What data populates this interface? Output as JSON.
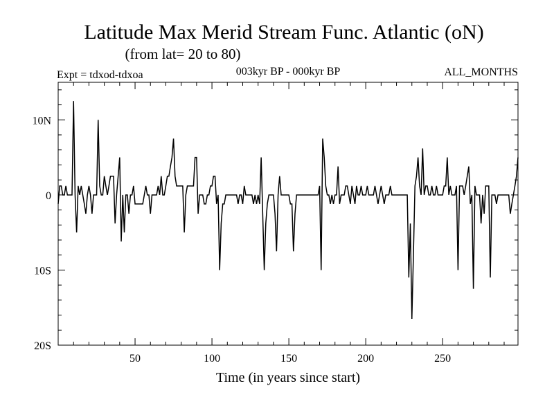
{
  "chart_data": {
    "type": "line",
    "title": "Latitude Max Merid Stream Func. Atlantic (oN)",
    "subtitle": "(from lat= 20 to 80)",
    "expt_label": "Expt = tdxod-tdxoa",
    "period_label": "003kyr BP - 000kyr BP",
    "months_label": "ALL_MONTHS",
    "xlabel": "Time (in years since start)",
    "ylabel": "",
    "xlim": [
      0,
      299
    ],
    "ylim": [
      -20,
      15
    ],
    "x_ticks": [
      {
        "value": 50,
        "label": "50"
      },
      {
        "value": 100,
        "label": "100"
      },
      {
        "value": 150,
        "label": "150"
      },
      {
        "value": 200,
        "label": "200"
      },
      {
        "value": 250,
        "label": "250"
      }
    ],
    "y_ticks": [
      {
        "value": 10,
        "label": "10N"
      },
      {
        "value": 0,
        "label": "0"
      },
      {
        "value": -10,
        "label": "10S"
      },
      {
        "value": -20,
        "label": "20S"
      }
    ],
    "grid": false,
    "series_color": "#000000",
    "series": [
      {
        "points": [
          [
            0,
            -1.2
          ],
          [
            1,
            1.2
          ],
          [
            2,
            1.2
          ],
          [
            3,
            0
          ],
          [
            4,
            0
          ],
          [
            5,
            1.2
          ],
          [
            6,
            0
          ],
          [
            7,
            0
          ],
          [
            8,
            0
          ],
          [
            9,
            0
          ],
          [
            10,
            12.5
          ],
          [
            11,
            0
          ],
          [
            12,
            -5
          ],
          [
            13,
            1.2
          ],
          [
            14,
            0
          ],
          [
            15,
            1.2
          ],
          [
            16,
            0
          ],
          [
            17,
            -1.2
          ],
          [
            18,
            -2.5
          ],
          [
            19,
            0
          ],
          [
            20,
            1.2
          ],
          [
            21,
            0
          ],
          [
            22,
            -2.5
          ],
          [
            23,
            0
          ],
          [
            24,
            0
          ],
          [
            25,
            0
          ],
          [
            26,
            10
          ],
          [
            27,
            1.2
          ],
          [
            28,
            0
          ],
          [
            29,
            0
          ],
          [
            30,
            2.5
          ],
          [
            31,
            1.2
          ],
          [
            32,
            0
          ],
          [
            33,
            1.2
          ],
          [
            34,
            2.5
          ],
          [
            35,
            2.5
          ],
          [
            36,
            2.5
          ],
          [
            37,
            -3.8
          ],
          [
            38,
            0
          ],
          [
            39,
            2.5
          ],
          [
            40,
            5
          ],
          [
            41,
            -6.2
          ],
          [
            42,
            0
          ],
          [
            43,
            -5
          ],
          [
            44,
            0
          ],
          [
            45,
            0
          ],
          [
            46,
            -2.5
          ],
          [
            47,
            0
          ],
          [
            48,
            0
          ],
          [
            49,
            1.2
          ],
          [
            50,
            -1.2
          ],
          [
            51,
            -1.2
          ],
          [
            52,
            -1.2
          ],
          [
            53,
            -1.2
          ],
          [
            54,
            -1.2
          ],
          [
            55,
            -1.2
          ],
          [
            56,
            0
          ],
          [
            57,
            1.2
          ],
          [
            58,
            0
          ],
          [
            59,
            0
          ],
          [
            60,
            -2.5
          ],
          [
            61,
            0
          ],
          [
            62,
            0
          ],
          [
            63,
            0
          ],
          [
            64,
            0
          ],
          [
            65,
            1.2
          ],
          [
            66,
            0
          ],
          [
            67,
            2.5
          ],
          [
            68,
            0
          ],
          [
            69,
            0
          ],
          [
            70,
            1.2
          ],
          [
            71,
            2.5
          ],
          [
            72,
            2.5
          ],
          [
            73,
            3.8
          ],
          [
            74,
            5
          ],
          [
            75,
            7.5
          ],
          [
            76,
            2.5
          ],
          [
            77,
            1.2
          ],
          [
            78,
            1.2
          ],
          [
            79,
            1.2
          ],
          [
            80,
            1.2
          ],
          [
            81,
            1.2
          ],
          [
            82,
            -5
          ],
          [
            83,
            0
          ],
          [
            84,
            1.2
          ],
          [
            85,
            1.2
          ],
          [
            86,
            1.2
          ],
          [
            87,
            1.2
          ],
          [
            88,
            1.2
          ],
          [
            89,
            5
          ],
          [
            90,
            5
          ],
          [
            91,
            -2.5
          ],
          [
            92,
            0
          ],
          [
            93,
            0
          ],
          [
            94,
            0
          ],
          [
            95,
            -1.2
          ],
          [
            96,
            -1.2
          ],
          [
            97,
            0
          ],
          [
            98,
            0
          ],
          [
            99,
            1.2
          ],
          [
            100,
            1.2
          ],
          [
            101,
            2.5
          ],
          [
            102,
            2.5
          ],
          [
            103,
            -1.2
          ],
          [
            104,
            0
          ],
          [
            105,
            -10
          ],
          [
            106,
            -3.8
          ],
          [
            107,
            -1.2
          ],
          [
            108,
            -1.2
          ],
          [
            109,
            0
          ],
          [
            110,
            0
          ],
          [
            111,
            0
          ],
          [
            112,
            0
          ],
          [
            113,
            0
          ],
          [
            114,
            0
          ],
          [
            115,
            0
          ],
          [
            116,
            0
          ],
          [
            117,
            -1.2
          ],
          [
            118,
            0
          ],
          [
            119,
            0
          ],
          [
            120,
            -1.2
          ],
          [
            121,
            1.2
          ],
          [
            122,
            0
          ],
          [
            123,
            0
          ],
          [
            124,
            0
          ],
          [
            125,
            0
          ],
          [
            126,
            0
          ],
          [
            127,
            -1.2
          ],
          [
            128,
            0
          ],
          [
            129,
            -1.2
          ],
          [
            130,
            0
          ],
          [
            131,
            -1.2
          ],
          [
            132,
            5
          ],
          [
            133,
            -2.5
          ],
          [
            134,
            -10
          ],
          [
            135,
            -3.8
          ],
          [
            136,
            -1.2
          ],
          [
            137,
            0
          ],
          [
            138,
            0
          ],
          [
            139,
            0
          ],
          [
            140,
            0
          ],
          [
            141,
            -2.5
          ],
          [
            142,
            -7.5
          ],
          [
            143,
            0
          ],
          [
            144,
            2.5
          ],
          [
            145,
            0
          ],
          [
            146,
            0
          ],
          [
            147,
            0
          ],
          [
            148,
            0
          ],
          [
            149,
            0
          ],
          [
            150,
            0
          ],
          [
            151,
            -1.2
          ],
          [
            152,
            -1.2
          ],
          [
            153,
            -7.5
          ],
          [
            154,
            -2.5
          ],
          [
            155,
            0
          ],
          [
            156,
            0
          ],
          [
            157,
            0
          ],
          [
            158,
            0
          ],
          [
            159,
            0
          ],
          [
            160,
            0
          ],
          [
            161,
            0
          ],
          [
            162,
            0
          ],
          [
            163,
            0
          ],
          [
            164,
            0
          ],
          [
            165,
            0
          ],
          [
            166,
            0
          ],
          [
            167,
            0
          ],
          [
            168,
            0
          ],
          [
            169,
            0
          ],
          [
            170,
            1.2
          ],
          [
            171,
            -10
          ],
          [
            172,
            7.5
          ],
          [
            173,
            5
          ],
          [
            174,
            1.2
          ],
          [
            175,
            0
          ],
          [
            176,
            0
          ],
          [
            177,
            -1.2
          ],
          [
            178,
            0
          ],
          [
            179,
            -1.2
          ],
          [
            180,
            0
          ],
          [
            181,
            0
          ],
          [
            182,
            3.8
          ],
          [
            183,
            -1.2
          ],
          [
            184,
            0
          ],
          [
            185,
            0
          ],
          [
            186,
            0
          ],
          [
            187,
            1.2
          ],
          [
            188,
            1.2
          ],
          [
            189,
            0
          ],
          [
            190,
            -1.2
          ],
          [
            191,
            1.2
          ],
          [
            192,
            0
          ],
          [
            193,
            -1.2
          ],
          [
            194,
            1.2
          ],
          [
            195,
            0
          ],
          [
            196,
            0
          ],
          [
            197,
            1.2
          ],
          [
            198,
            0
          ],
          [
            199,
            0
          ],
          [
            200,
            0
          ],
          [
            201,
            1.2
          ],
          [
            202,
            0
          ],
          [
            203,
            0
          ],
          [
            204,
            0
          ],
          [
            205,
            0
          ],
          [
            206,
            1.2
          ],
          [
            207,
            0
          ],
          [
            208,
            -1.2
          ],
          [
            209,
            0
          ],
          [
            210,
            1.2
          ],
          [
            211,
            0
          ],
          [
            212,
            -1.2
          ],
          [
            213,
            0
          ],
          [
            214,
            0
          ],
          [
            215,
            0
          ],
          [
            216,
            1.2
          ],
          [
            217,
            0
          ],
          [
            218,
            0
          ],
          [
            219,
            0
          ],
          [
            220,
            0
          ],
          [
            221,
            0
          ],
          [
            222,
            0
          ],
          [
            223,
            0
          ],
          [
            224,
            0
          ],
          [
            225,
            0
          ],
          [
            226,
            0
          ],
          [
            227,
            0
          ],
          [
            228,
            -11
          ],
          [
            229,
            -3.8
          ],
          [
            230,
            -16.5
          ],
          [
            231,
            -8
          ],
          [
            232,
            1.2
          ],
          [
            233,
            2.5
          ],
          [
            234,
            5
          ],
          [
            235,
            1.2
          ],
          [
            236,
            0
          ],
          [
            237,
            6.2
          ],
          [
            238,
            0
          ],
          [
            239,
            1.2
          ],
          [
            240,
            1.2
          ],
          [
            241,
            0
          ],
          [
            242,
            0
          ],
          [
            243,
            1.2
          ],
          [
            244,
            0
          ],
          [
            245,
            0
          ],
          [
            246,
            1.2
          ],
          [
            247,
            0
          ],
          [
            248,
            0
          ],
          [
            249,
            0
          ],
          [
            250,
            0
          ],
          [
            251,
            1.2
          ],
          [
            252,
            1.2
          ],
          [
            253,
            5
          ],
          [
            254,
            0
          ],
          [
            255,
            1.2
          ],
          [
            256,
            0
          ],
          [
            257,
            0
          ],
          [
            258,
            0
          ],
          [
            259,
            1.2
          ],
          [
            260,
            -10
          ],
          [
            261,
            1.2
          ],
          [
            262,
            1.2
          ],
          [
            263,
            1.2
          ],
          [
            264,
            0
          ],
          [
            265,
            1.2
          ],
          [
            266,
            2.5
          ],
          [
            267,
            3.8
          ],
          [
            268,
            -1.2
          ],
          [
            269,
            0
          ],
          [
            270,
            -12.5
          ],
          [
            271,
            1.2
          ],
          [
            272,
            0
          ],
          [
            273,
            0
          ],
          [
            274,
            0
          ],
          [
            275,
            -3.8
          ],
          [
            276,
            0
          ],
          [
            277,
            -2.5
          ],
          [
            278,
            1.2
          ],
          [
            279,
            1.2
          ],
          [
            280,
            1.2
          ],
          [
            281,
            -11
          ],
          [
            282,
            0
          ],
          [
            283,
            0
          ],
          [
            284,
            0
          ],
          [
            285,
            -1.2
          ],
          [
            286,
            0
          ],
          [
            287,
            0
          ],
          [
            288,
            0
          ],
          [
            289,
            0
          ],
          [
            290,
            0
          ],
          [
            291,
            0
          ],
          [
            292,
            0
          ],
          [
            293,
            0
          ],
          [
            294,
            -2.5
          ],
          [
            295,
            -1.2
          ],
          [
            296,
            0
          ],
          [
            297,
            1.2
          ],
          [
            298,
            2.5
          ],
          [
            299,
            5
          ]
        ]
      }
    ]
  }
}
